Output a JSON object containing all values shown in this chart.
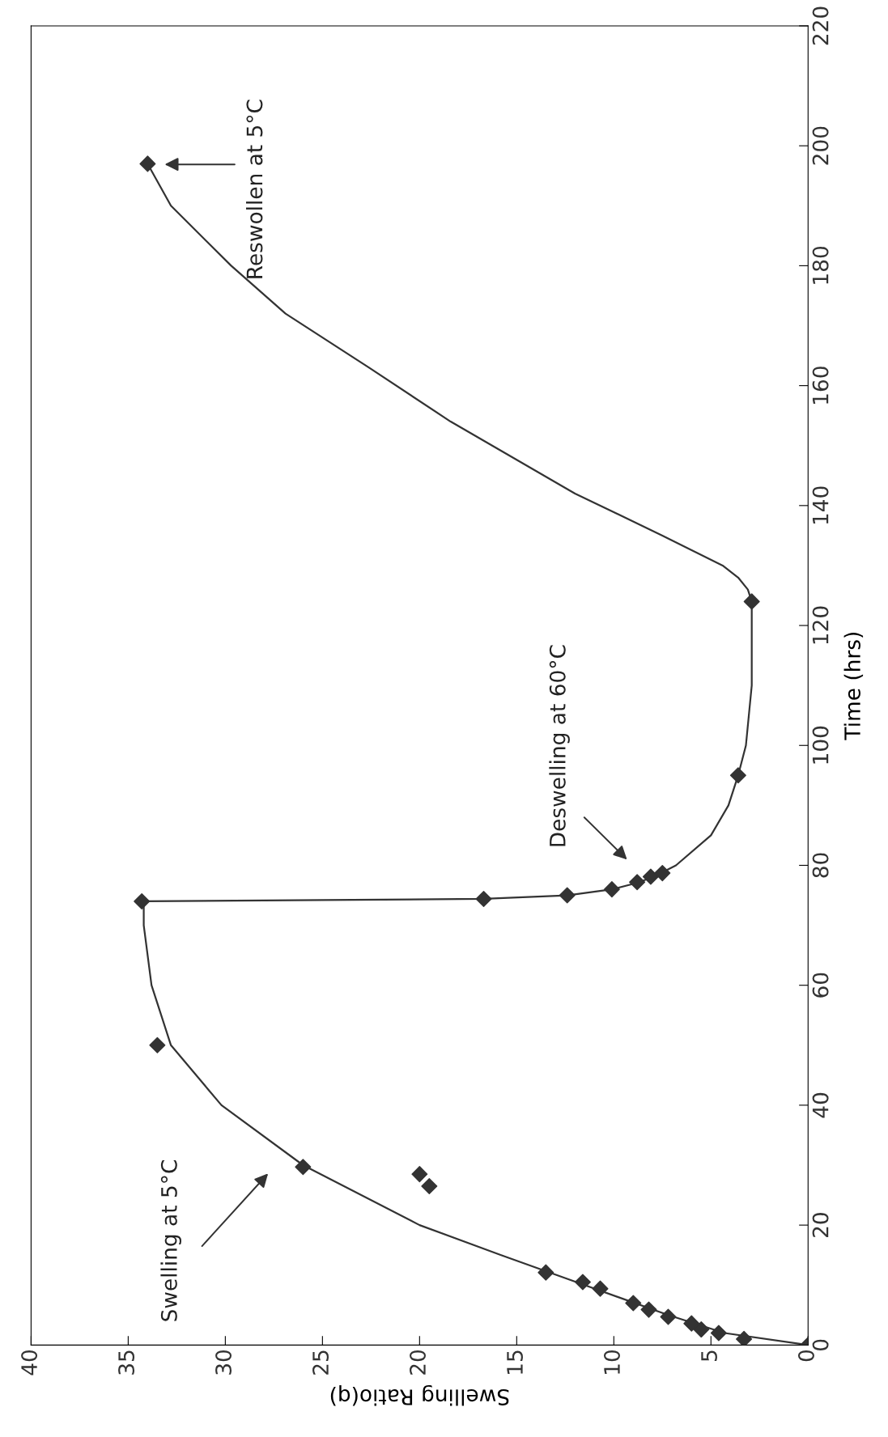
{
  "chart_data": {
    "type": "scatter",
    "xlabel": "Swelling Ratio(q)",
    "ylabel": "Time (hrs)",
    "xlim": [
      40,
      0
    ],
    "xticks": [
      0,
      5,
      10,
      15,
      20,
      25,
      30,
      35,
      40
    ],
    "ylim": [
      0,
      220
    ],
    "yticks": [
      0,
      20,
      40,
      60,
      80,
      100,
      120,
      140,
      160,
      180,
      200,
      220
    ],
    "series": [
      {
        "color": "#333333",
        "marker": "diamond",
        "x": [
          0,
          3.3,
          4.6,
          5.5,
          6,
          7.2,
          8.2,
          9,
          10.7,
          11.6,
          13.5,
          19.5,
          20,
          26,
          33.5,
          34.3,
          16.7,
          12.4,
          10.1,
          8.8,
          8.1,
          7.5,
          3.6,
          2.9,
          34
        ],
        "values": [
          0,
          1,
          2,
          2.6,
          3.6,
          4.7,
          5.9,
          7,
          9.4,
          10.5,
          12.1,
          26.5,
          28.5,
          29.7,
          50,
          74,
          74.4,
          75,
          76,
          77.2,
          78.1,
          78.7,
          95,
          124,
          197
        ]
      },
      {
        "type": "line",
        "color": "#333333",
        "marker": "none",
        "x": [
          0,
          4.3,
          7.2,
          11.5,
          15.8,
          20,
          26,
          30.2,
          32.8,
          33.8,
          34.2,
          34.2,
          25,
          16.7,
          12.4,
          10.1,
          8.9,
          8,
          6.8,
          5,
          4.1,
          3.6,
          3.2,
          2.9,
          2.9,
          2.9,
          3.1,
          3.6,
          4.4,
          7.5,
          12,
          18.4,
          22.6,
          26.9,
          29.7,
          32.8,
          34
        ],
        "values": [
          0,
          2,
          5,
          10,
          15,
          20,
          30,
          40,
          50,
          60,
          70,
          74,
          74.2,
          74.4,
          75,
          76,
          77,
          78,
          80,
          85,
          90,
          95,
          100,
          110,
          120,
          124,
          126,
          128,
          130,
          135,
          142,
          154,
          163,
          172,
          180,
          190,
          197
        ]
      }
    ],
    "annotations": [
      "Swelling at 5°C",
      "Deswelling at 60°C",
      "Reswollen at 5°C"
    ]
  }
}
